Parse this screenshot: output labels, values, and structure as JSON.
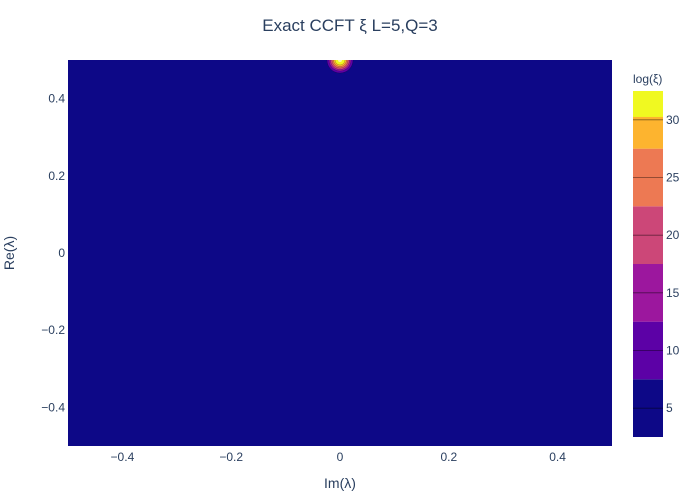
{
  "chart_data": {
    "type": "contour",
    "title": "Exact CCFT ξ L=5,Q=3",
    "xlabel": "Im(λ)",
    "ylabel": "Re(λ)",
    "xlim": [
      -0.5,
      0.5
    ],
    "ylim": [
      -0.5,
      0.5
    ],
    "x_ticks": [
      -0.4,
      -0.2,
      0,
      0.2,
      0.4
    ],
    "x_tick_labels": [
      "−0.4",
      "−0.2",
      "0",
      "0.2",
      "0.4"
    ],
    "y_ticks": [
      -0.4,
      -0.2,
      0,
      0.2,
      0.4
    ],
    "y_tick_labels": [
      "−0.4",
      "−0.2",
      "0",
      "0.2",
      "0.4"
    ],
    "grid": false,
    "background_color": "#0d0887",
    "peak": {
      "x": 0,
      "y": 0.5,
      "label": "singular point near Im(λ)=0, Re(λ)=0.5"
    },
    "colorbar": {
      "title": "log(ξ)",
      "range": [
        2.5,
        32.5
      ],
      "ticks": [
        5,
        10,
        15,
        20,
        25,
        30
      ],
      "levels": [
        {
          "from": 2.5,
          "to": 7.5,
          "color": "#0d0887"
        },
        {
          "from": 7.5,
          "to": 12.5,
          "color": "#5c01a6"
        },
        {
          "from": 12.5,
          "to": 17.5,
          "color": "#9c179e"
        },
        {
          "from": 17.5,
          "to": 22.5,
          "color": "#cc4778"
        },
        {
          "from": 22.5,
          "to": 27.5,
          "color": "#ed7953"
        },
        {
          "from": 27.5,
          "to": 32.5,
          "color": "#fdb42f"
        },
        {
          "from": 32.5,
          "to": 35,
          "color": "#f0f921"
        }
      ]
    }
  }
}
